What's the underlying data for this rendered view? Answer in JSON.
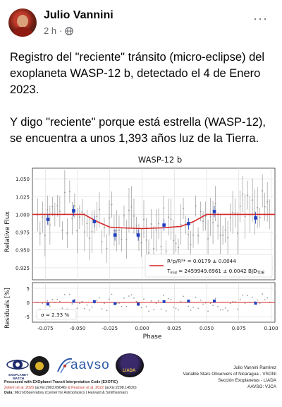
{
  "post": {
    "author": "Julio Vannini",
    "time": "2 h",
    "dot": "·",
    "more": "···",
    "paragraphs": [
      "Registro del \"reciente\" tránsito (micro-eclipse) del exoplaneta WASP-12 b, detectado el 4 de Enero 2023.",
      "Y digo \"reciente\" porque está estrella (WASP-12), se encuentra a unos 1,393 años luz de la Tierra."
    ]
  },
  "figure": {
    "title": "WASP-12 b",
    "ylabel_top": "Relative Flux",
    "ylabel_bottom": "Residuals [%]",
    "xlabel": "Phase",
    "legend_rp": "R²p/R²* = 0.0179 ± 0.0044",
    "legend_rp_main": "R",
    "legend_rp_rest": " = 0.0179 ± 0.0044",
    "legend_tmid": "T",
    "legend_tmid_sub": "mid",
    "legend_tmid_rest": " = 2459949.6961 ± 0.0042 BJD",
    "legend_tmid_tail": "TDB",
    "sigma_label": "σ = 2.33 %",
    "colors": {
      "model": "#d62728",
      "binned": "#1f3fbf",
      "raw": "#9a9a9a"
    }
  },
  "chart_data": {
    "type": "scatter",
    "title": "WASP-12 b",
    "xlabel": "Phase",
    "ylabel": "Relative Flux",
    "xlim": [
      -0.085,
      0.103
    ],
    "ylim": [
      0.908,
      1.065
    ],
    "x_ticks": [
      -0.075,
      -0.05,
      -0.025,
      0.0,
      0.025,
      0.05,
      0.075,
      0.1
    ],
    "y_ticks": [
      0.925,
      0.95,
      0.975,
      1.0,
      1.025,
      1.05
    ],
    "residual_ylim": [
      -7,
      7
    ],
    "residual_ticks": [
      -5,
      0,
      5
    ],
    "series": [
      {
        "name": "Binned",
        "x": [
          -0.073,
          -0.053,
          -0.037,
          -0.021,
          -0.003,
          0.017,
          0.036,
          0.056,
          0.088
        ],
        "y": [
          0.993,
          1.005,
          0.99,
          0.971,
          0.971,
          0.985,
          0.987,
          1.004,
          0.995
        ],
        "residual": [
          -0.6,
          0.4,
          0.3,
          -0.4,
          -0.6,
          0.3,
          0.5,
          0.5,
          -0.3
        ]
      },
      {
        "name": "Model",
        "x": [
          -0.085,
          -0.045,
          -0.035,
          -0.025,
          -0.015,
          0.0,
          0.015,
          0.03,
          0.04,
          0.05,
          0.06,
          0.103
        ],
        "y": [
          1.0,
          1.0,
          0.99,
          0.982,
          0.981,
          0.98,
          0.981,
          0.983,
          0.99,
          1.0,
          1.0,
          1.0
        ]
      }
    ]
  },
  "credits": {
    "exoplanet_watch": "EXOPLANET WATCH",
    "aavso": "aavso",
    "liada": "LIADA",
    "processed": "Processed with EXOplanet Transit Interpretation Code (EXOTIC)",
    "refs_a": "Zellem et al. 2020",
    "refs_b": "(arXiv:2003.09046)",
    "refs_c": " & Pearson et al. 2022 ",
    "refs_d": "(arXiv:2208.14520)",
    "data": "Data:",
    "data_rest": " MicroObservatory (Center for Astrophysics | Harvard & Smithsonian)",
    "right_1": "Julio Vannini Ramírez",
    "right_2": "Variable Stars Observers of Nicaragua - VSONI",
    "right_3": "Sección Exoplanetas - LIADA",
    "right_4": "AAVSO: VJCA"
  }
}
